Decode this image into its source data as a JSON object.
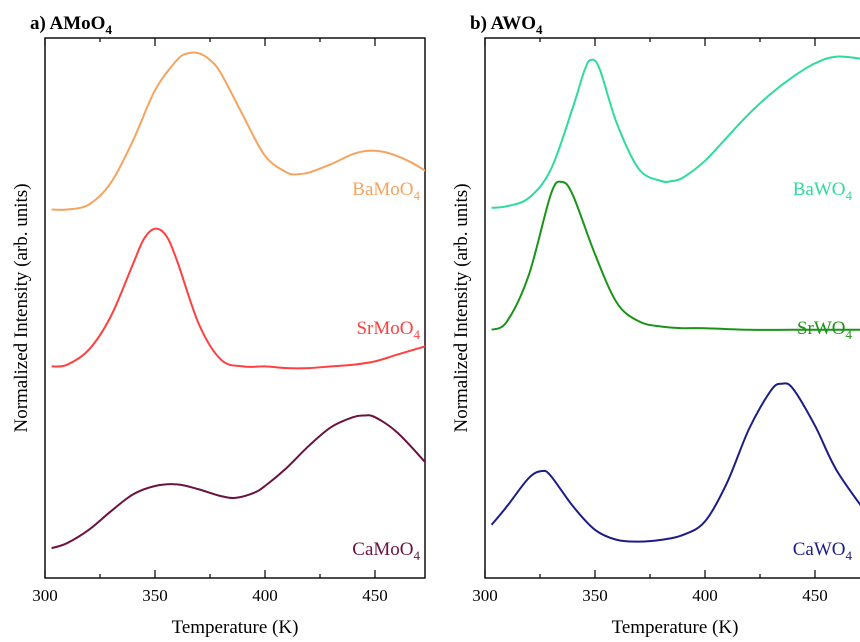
{
  "chart_data": [
    {
      "type": "line",
      "title": "a) AMoO",
      "title_sub": "4",
      "xlabel": "Temperature (K)",
      "ylabel": "Normalized Intensity (arb. units)",
      "xlim": [
        300,
        475
      ],
      "xticks": [
        300,
        350,
        400,
        450
      ],
      "tick_labels": [
        "300",
        "350",
        "400",
        "450"
      ],
      "series": [
        {
          "name": "BaMoO",
          "name_sub": "4",
          "color": "#f4a460",
          "offset": 2,
          "x": [
            303,
            310,
            320,
            330,
            340,
            350,
            360,
            365,
            370,
            375,
            380,
            390,
            400,
            410,
            415,
            420,
            430,
            440,
            447,
            455,
            465,
            473
          ],
          "y": [
            0.11,
            0.11,
            0.14,
            0.27,
            0.52,
            0.82,
            1.0,
            1.04,
            1.04,
            1.0,
            0.92,
            0.67,
            0.43,
            0.33,
            0.32,
            0.33,
            0.38,
            0.44,
            0.46,
            0.45,
            0.4,
            0.34
          ]
        },
        {
          "name": "SrMoO",
          "name_sub": "4",
          "color": "#ff4040",
          "offset": 1,
          "x": [
            303,
            310,
            320,
            330,
            340,
            345,
            350,
            355,
            360,
            370,
            380,
            390,
            400,
            410,
            420,
            430,
            440,
            450,
            460,
            473
          ],
          "y": [
            0.17,
            0.18,
            0.27,
            0.47,
            0.78,
            0.93,
            0.99,
            0.95,
            0.8,
            0.42,
            0.21,
            0.17,
            0.17,
            0.16,
            0.16,
            0.17,
            0.18,
            0.2,
            0.24,
            0.29
          ]
        },
        {
          "name": "CaMoO",
          "name_sub": "4",
          "color": "#6b1240",
          "offset": 0,
          "x": [
            303,
            310,
            320,
            330,
            340,
            350,
            360,
            370,
            380,
            387,
            395,
            400,
            410,
            420,
            430,
            440,
            445,
            450,
            460,
            473
          ],
          "y": [
            0.1,
            0.13,
            0.21,
            0.32,
            0.42,
            0.47,
            0.48,
            0.45,
            0.41,
            0.4,
            0.43,
            0.47,
            0.58,
            0.71,
            0.82,
            0.88,
            0.89,
            0.88,
            0.79,
            0.61
          ]
        }
      ]
    },
    {
      "type": "line",
      "title": "b) AWO",
      "title_sub": "4",
      "xlabel": "Temperature (K)",
      "ylabel": "Normalized Intensity (arb. units)",
      "xlim": [
        300,
        475
      ],
      "xticks": [
        300,
        350,
        400,
        450
      ],
      "tick_labels": [
        "300",
        "350",
        "400",
        "450"
      ],
      "series": [
        {
          "name": "BaWO",
          "name_sub": "4",
          "color": "#2ddc9a",
          "offset": 2,
          "x": [
            303,
            310,
            320,
            330,
            340,
            345,
            348,
            352,
            360,
            370,
            380,
            385,
            390,
            400,
            410,
            420,
            430,
            440,
            450,
            460,
            475
          ],
          "y": [
            0.12,
            0.13,
            0.18,
            0.35,
            0.72,
            0.93,
            1.0,
            0.95,
            0.62,
            0.35,
            0.28,
            0.28,
            0.3,
            0.4,
            0.54,
            0.68,
            0.8,
            0.9,
            0.98,
            1.02,
            1.0
          ]
        },
        {
          "name": "SrWO",
          "name_sub": "4",
          "color": "#1a9418",
          "offset": 1,
          "x": [
            303,
            310,
            320,
            330,
            335,
            340,
            350,
            360,
            370,
            380,
            390,
            400,
            420,
            440,
            460,
            475
          ],
          "y": [
            0.12,
            0.17,
            0.45,
            0.93,
            1.0,
            0.92,
            0.57,
            0.28,
            0.17,
            0.14,
            0.13,
            0.13,
            0.12,
            0.12,
            0.12,
            0.12
          ]
        },
        {
          "name": "CaWO",
          "name_sub": "4",
          "color": "#1c1c85",
          "offset": 0,
          "x": [
            303,
            310,
            320,
            326,
            330,
            340,
            350,
            360,
            370,
            380,
            390,
            400,
            410,
            420,
            430,
            435,
            440,
            450,
            460,
            475
          ],
          "y": [
            0.15,
            0.26,
            0.43,
            0.47,
            0.44,
            0.26,
            0.12,
            0.06,
            0.05,
            0.06,
            0.09,
            0.17,
            0.4,
            0.72,
            0.95,
            0.99,
            0.96,
            0.74,
            0.47,
            0.19
          ]
        }
      ]
    }
  ]
}
